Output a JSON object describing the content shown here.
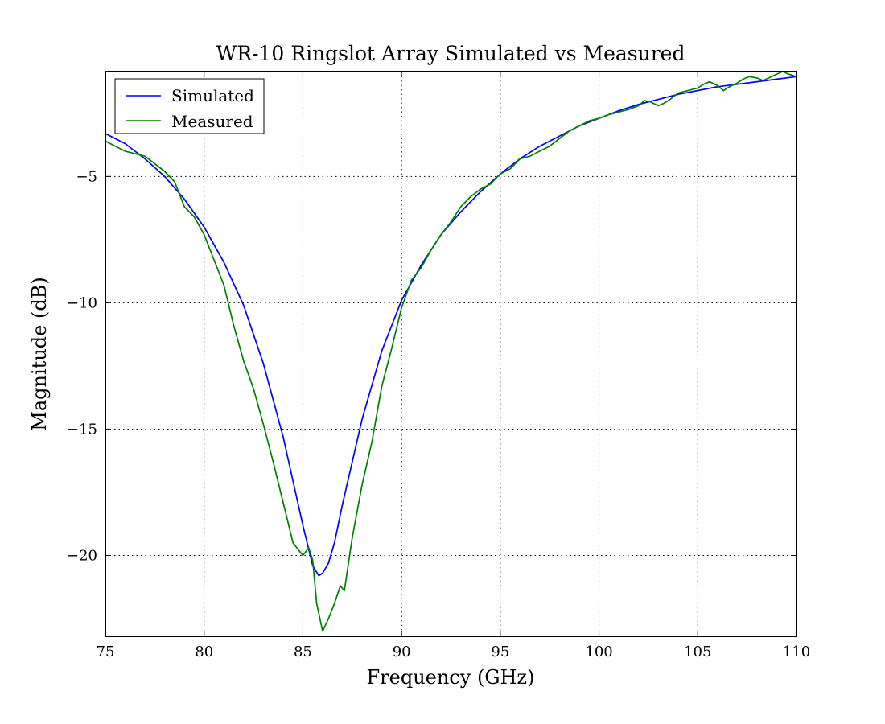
{
  "chart_data": {
    "type": "line",
    "title": "WR-10 Ringslot Array Simulated vs Measured",
    "xlabel": "Frequency (GHz)",
    "ylabel": "Magnitude (dB)",
    "xlim": [
      75,
      110
    ],
    "ylim": [
      -23.2,
      -0.85
    ],
    "xticks": [
      75,
      80,
      85,
      90,
      95,
      100,
      105,
      110
    ],
    "yticks": [
      -5,
      -10,
      -15,
      -20
    ],
    "xtick_labels": [
      "75",
      "80",
      "85",
      "90",
      "95",
      "100",
      "105",
      "110"
    ],
    "ytick_labels": [
      "−5",
      "−10",
      "−15",
      "−20"
    ],
    "grid": true,
    "legend_position": "top-left",
    "colors": {
      "simulated": "#0000ff",
      "measured": "#008000"
    },
    "series": [
      {
        "name": "Simulated",
        "color": "#0000ff",
        "x": [
          75,
          76,
          77,
          78,
          79,
          80,
          81,
          82,
          83,
          84,
          85,
          85.5,
          85.8,
          86,
          86.3,
          86.6,
          87,
          88,
          89,
          90,
          91,
          92,
          93,
          94,
          95,
          96,
          97,
          98,
          99,
          100,
          101,
          102,
          103,
          104,
          105,
          106,
          107,
          108,
          109,
          110
        ],
        "y": [
          -3.3,
          -3.7,
          -4.3,
          -5.0,
          -5.9,
          -7.0,
          -8.4,
          -10.1,
          -12.4,
          -15.3,
          -18.8,
          -20.4,
          -20.8,
          -20.7,
          -20.3,
          -19.5,
          -18.0,
          -14.6,
          -11.9,
          -9.9,
          -8.5,
          -7.3,
          -6.4,
          -5.6,
          -4.9,
          -4.3,
          -3.8,
          -3.4,
          -3.0,
          -2.7,
          -2.4,
          -2.15,
          -1.95,
          -1.75,
          -1.6,
          -1.45,
          -1.35,
          -1.25,
          -1.15,
          -1.05
        ]
      },
      {
        "name": "Measured",
        "color": "#008000",
        "x": [
          75,
          75.5,
          76,
          76.5,
          77,
          77.5,
          78,
          78.5,
          79,
          79.5,
          80,
          80.5,
          81,
          81.5,
          82,
          82.5,
          83,
          83.5,
          84,
          84.5,
          85,
          85.3,
          85.5,
          85.7,
          86,
          86.3,
          86.6,
          86.9,
          87.1,
          87.5,
          88,
          88.5,
          89,
          89.5,
          90,
          90.5,
          91,
          91.5,
          92,
          92.5,
          93,
          93.5,
          94,
          94.5,
          95,
          95.5,
          96,
          96.5,
          97,
          97.5,
          98,
          98.5,
          99,
          99.5,
          100,
          100.5,
          101,
          101.5,
          102,
          102.3,
          102.6,
          103,
          103.3,
          103.6,
          104,
          104.5,
          105,
          105.3,
          105.6,
          106,
          106.3,
          106.6,
          107,
          107.3,
          107.6,
          108,
          108.3,
          108.6,
          109,
          109.3,
          109.6,
          110
        ],
        "y": [
          -3.6,
          -3.8,
          -4.0,
          -4.1,
          -4.2,
          -4.5,
          -4.8,
          -5.2,
          -6.2,
          -6.6,
          -7.3,
          -8.3,
          -9.3,
          -10.9,
          -12.3,
          -13.4,
          -14.8,
          -16.3,
          -17.9,
          -19.5,
          -20.0,
          -19.7,
          -20.2,
          -21.9,
          -23.0,
          -22.5,
          -21.9,
          -21.2,
          -21.4,
          -19.3,
          -17.2,
          -15.5,
          -13.3,
          -11.8,
          -10.2,
          -9.1,
          -8.6,
          -7.9,
          -7.3,
          -6.8,
          -6.2,
          -5.8,
          -5.5,
          -5.3,
          -4.9,
          -4.7,
          -4.3,
          -4.2,
          -4.0,
          -3.8,
          -3.5,
          -3.2,
          -3.0,
          -2.8,
          -2.7,
          -2.55,
          -2.45,
          -2.35,
          -2.2,
          -2.0,
          -2.05,
          -2.2,
          -2.1,
          -1.95,
          -1.7,
          -1.6,
          -1.5,
          -1.35,
          -1.25,
          -1.4,
          -1.6,
          -1.45,
          -1.3,
          -1.15,
          -1.05,
          -1.1,
          -1.2,
          -1.1,
          -0.95,
          -0.85,
          -0.95,
          -1.05
        ]
      }
    ]
  }
}
